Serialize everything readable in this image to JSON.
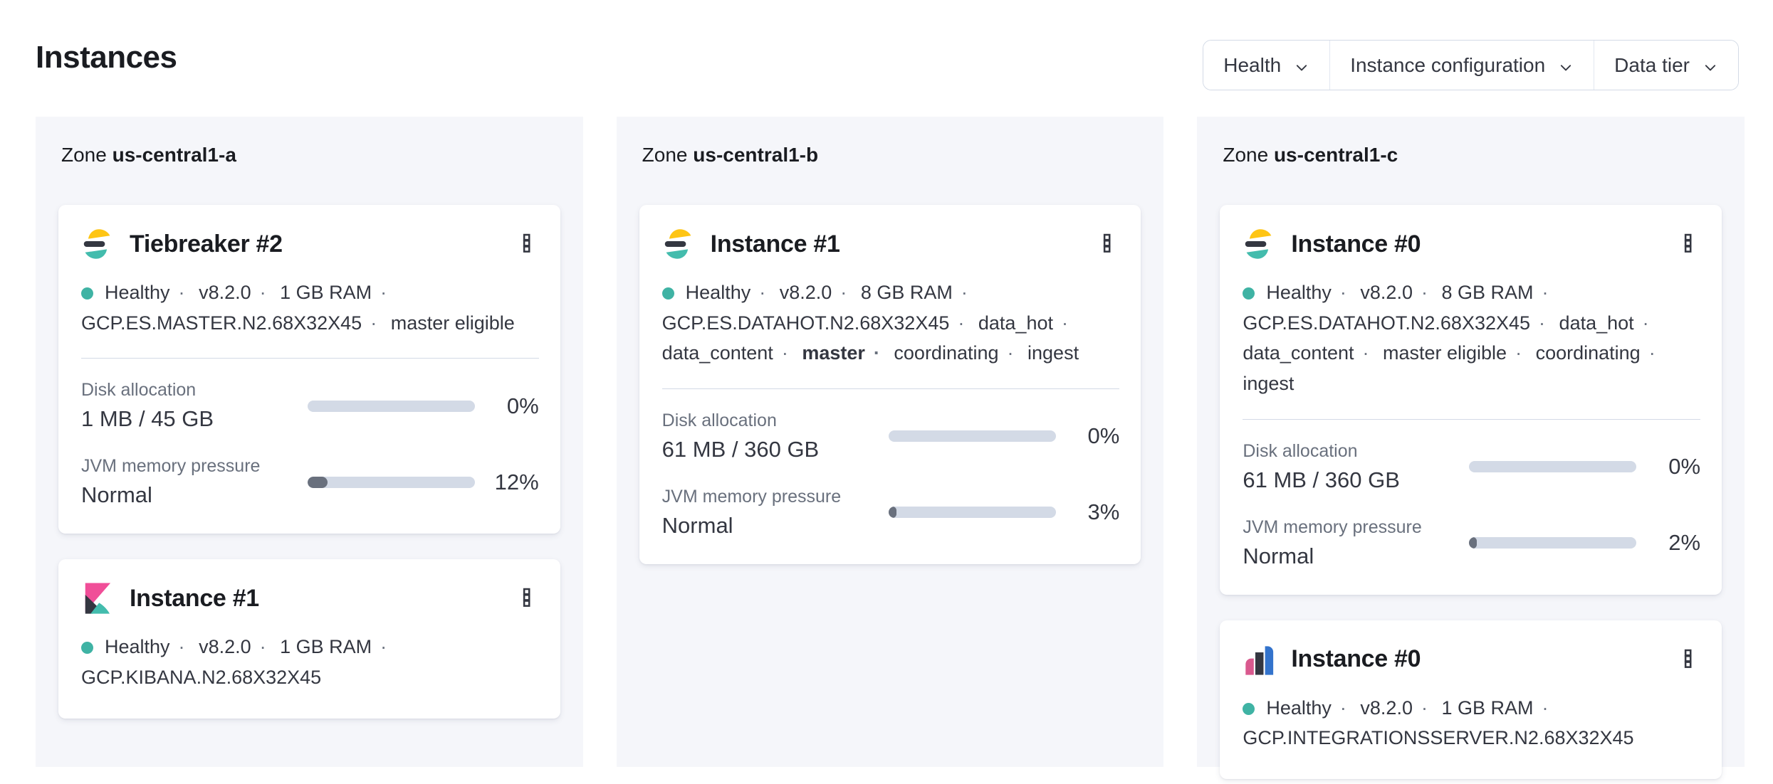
{
  "page": {
    "title": "Instances"
  },
  "filter_bar": {
    "items": [
      {
        "label": "Health"
      },
      {
        "label": "Instance configuration"
      },
      {
        "label": "Data tier"
      }
    ]
  },
  "colors": {
    "health_teal": "#3fb3a4",
    "progress_track": "#d3dae6",
    "progress_fill": "#69707d",
    "brand_yellow": "#fec514",
    "brand_dark": "#343741",
    "brand_teal": "#43bcad",
    "brand_pink": "#f04e98",
    "brand_blue": "#3373cc",
    "panel_bg": "#f5f6fa"
  },
  "zones": [
    {
      "label": "Zone",
      "name": "us-central1-a",
      "instances": [
        {
          "logo": "elasticsearch-logo",
          "title": "Tiebreaker #2",
          "status": [
            {
              "text": "Healthy"
            },
            {
              "text": "v8.2.0"
            },
            {
              "text": "1 GB RAM"
            },
            {
              "text": "GCP.ES.MASTER.N2.68X32X45"
            },
            {
              "text": "master eligible"
            }
          ],
          "metrics": [
            {
              "label": "Disk allocation",
              "value": "1 MB / 45 GB",
              "percent": "0%",
              "fill_pct": 0
            },
            {
              "label": "JVM memory pressure",
              "value": "Normal",
              "percent": "12%",
              "fill_pct": 12
            }
          ]
        },
        {
          "logo": "kibana-logo",
          "title": "Instance #1",
          "status": [
            {
              "text": "Healthy"
            },
            {
              "text": "v8.2.0"
            },
            {
              "text": "1 GB RAM"
            },
            {
              "text": "GCP.KIBANA.N2.68X32X45"
            }
          ],
          "metrics": []
        }
      ]
    },
    {
      "label": "Zone",
      "name": "us-central1-b",
      "instances": [
        {
          "logo": "elasticsearch-logo",
          "title": "Instance #1",
          "status": [
            {
              "text": "Healthy"
            },
            {
              "text": "v8.2.0"
            },
            {
              "text": "8 GB RAM"
            },
            {
              "text": "GCP.ES.DATAHOT.N2.68X32X45"
            },
            {
              "text": "data_hot"
            },
            {
              "text": "data_content"
            },
            {
              "text": "master",
              "bold": true
            },
            {
              "text": "coordinating"
            },
            {
              "text": "ingest"
            }
          ],
          "metrics": [
            {
              "label": "Disk allocation",
              "value": "61 MB / 360 GB",
              "percent": "0%",
              "fill_pct": 0
            },
            {
              "label": "JVM memory pressure",
              "value": "Normal",
              "percent": "3%",
              "fill_pct": 3
            }
          ]
        }
      ]
    },
    {
      "label": "Zone",
      "name": "us-central1-c",
      "instances": [
        {
          "logo": "elasticsearch-logo",
          "title": "Instance #0",
          "status": [
            {
              "text": "Healthy"
            },
            {
              "text": "v8.2.0"
            },
            {
              "text": "8 GB RAM"
            },
            {
              "text": "GCP.ES.DATAHOT.N2.68X32X45"
            },
            {
              "text": "data_hot"
            },
            {
              "text": "data_content"
            },
            {
              "text": "master eligible"
            },
            {
              "text": "coordinating"
            },
            {
              "text": "ingest"
            }
          ],
          "metrics": [
            {
              "label": "Disk allocation",
              "value": "61 MB / 360 GB",
              "percent": "0%",
              "fill_pct": 0
            },
            {
              "label": "JVM memory pressure",
              "value": "Normal",
              "percent": "2%",
              "fill_pct": 2
            }
          ]
        },
        {
          "logo": "integrations-server-logo",
          "title": "Instance #0",
          "status": [
            {
              "text": "Healthy"
            },
            {
              "text": "v8.2.0"
            },
            {
              "text": "1 GB RAM"
            },
            {
              "text": "GCP.INTEGRATIONSSERVER.N2.68X32X45"
            }
          ],
          "metrics": []
        }
      ]
    }
  ]
}
